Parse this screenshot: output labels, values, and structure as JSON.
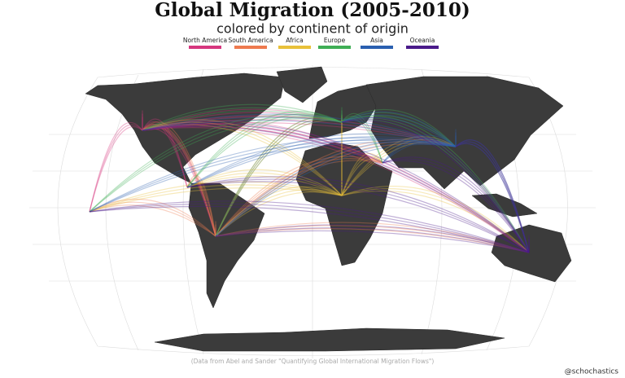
{
  "title": "Global Migration (2005-2010)",
  "subtitle": "colored by continent of origin",
  "legend": [
    {
      "name": "North America",
      "color": "#d6377f"
    },
    {
      "name": "South America",
      "color": "#ee7a4f"
    },
    {
      "name": "Africa",
      "color": "#e8c13a"
    },
    {
      "name": "Europe",
      "color": "#3fae55"
    },
    {
      "name": "Asia",
      "color": "#2a5fb0"
    },
    {
      "name": "Oceania",
      "color": "#4a1a8a"
    }
  ],
  "source": "(Data from Abel and Sander \"Quantifying Global International Migration Flows\")",
  "credit": "@schochastics"
}
